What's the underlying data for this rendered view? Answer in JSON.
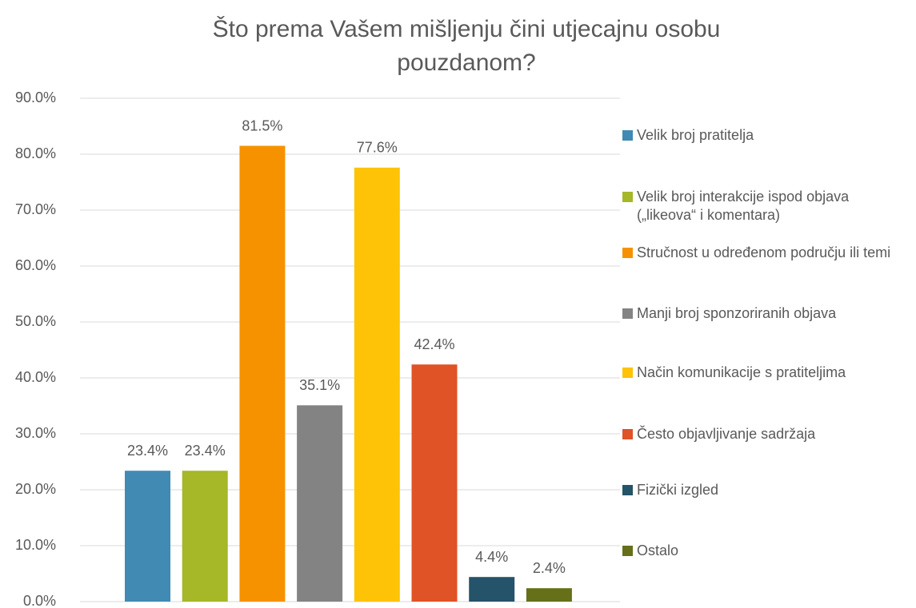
{
  "chart_data": {
    "type": "bar",
    "title": "Što prema Vašem mišljenju čini utjecajnu osobu pouzdanom?",
    "series": [
      {
        "name": "Velik broj pratitelja",
        "color": "#418ab3",
        "values": [
          23.4
        ],
        "value_labels": [
          "23.4%"
        ]
      },
      {
        "name": "Velik broj interakcije ispod objava („likeova“ i komentara)",
        "color": "#a6b727",
        "values": [
          23.4
        ],
        "value_labels": [
          "23.4%"
        ]
      },
      {
        "name": "Stručnost u određenom području ili temi",
        "color": "#f69200",
        "values": [
          81.5
        ],
        "value_labels": [
          "81.5%"
        ]
      },
      {
        "name": "Manji broj sponzoriranih objava",
        "color": "#838383",
        "values": [
          35.1
        ],
        "value_labels": [
          "35.1%"
        ]
      },
      {
        "name": "Način komunikacije s pratiteljima",
        "color": "#fec306",
        "values": [
          77.6
        ],
        "value_labels": [
          "77.6%"
        ]
      },
      {
        "name": "Često objavljivanje sadržaja",
        "color": "#df5327",
        "values": [
          42.4
        ],
        "value_labels": [
          "42.4%"
        ]
      },
      {
        "name": "Fizički izgled",
        "color": "#255369",
        "values": [
          4.4
        ],
        "value_labels": [
          "4.4%"
        ]
      },
      {
        "name": "Ostalo",
        "color": "#657019",
        "values": [
          2.4
        ],
        "value_labels": [
          "2.4%"
        ]
      }
    ],
    "ylim": [
      0,
      90
    ],
    "yticks": [
      {
        "value": 0,
        "label": "0.0%"
      },
      {
        "value": 10,
        "label": "10.0%"
      },
      {
        "value": 20,
        "label": "20.0%"
      },
      {
        "value": 30,
        "label": "30.0%"
      },
      {
        "value": 40,
        "label": "40.0%"
      },
      {
        "value": 50,
        "label": "50.0%"
      },
      {
        "value": 60,
        "label": "60.0%"
      },
      {
        "value": 70,
        "label": "70.0%"
      },
      {
        "value": 80,
        "label": "80.0%"
      },
      {
        "value": 90,
        "label": "90.0%"
      }
    ],
    "grid": true,
    "legend": "right"
  }
}
